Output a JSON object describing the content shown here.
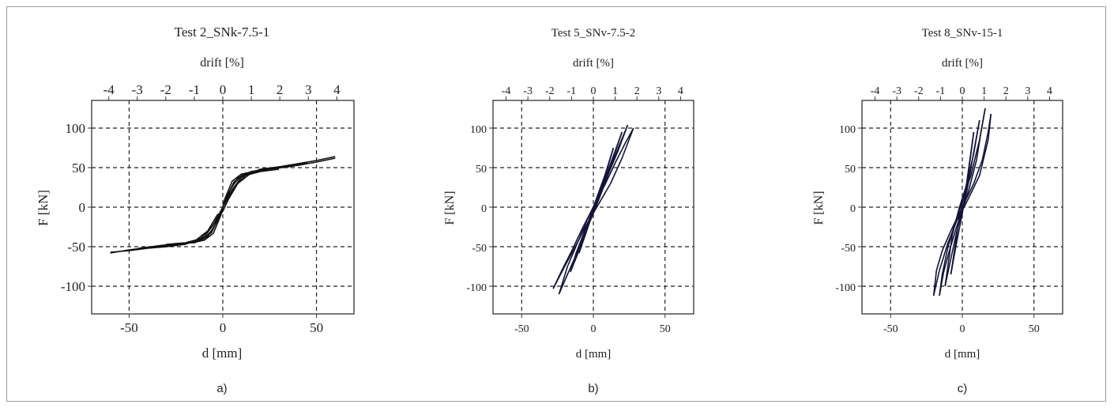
{
  "figure": {
    "panel_captions": [
      "a)",
      "b)",
      "c)"
    ]
  },
  "chart_data": [
    {
      "type": "line",
      "title": "Test 2_SNk-7.5-1",
      "xlabel": "d [mm]",
      "ylabel": "F [kN]",
      "x2label": "drift [%]",
      "xlim": [
        -70,
        70
      ],
      "ylim": [
        -135,
        135
      ],
      "x2lim": [
        -4.6,
        4.6
      ],
      "xticks": [
        -50,
        0,
        50
      ],
      "yticks": [
        -100,
        -50,
        0,
        50,
        100
      ],
      "x2ticks": [
        -4,
        -3,
        -2,
        -1,
        0,
        1,
        2,
        3,
        4
      ],
      "grid": true,
      "grid_style": "dashed",
      "series_color": "#111111",
      "series": [
        {
          "x": [
            -60,
            -50,
            -40,
            -30,
            -20,
            -10,
            -5,
            0,
            5,
            10,
            20,
            30,
            40,
            50,
            60
          ],
          "y": [
            -58,
            -54,
            -51,
            -48,
            -46,
            -40,
            -27,
            0,
            27,
            40,
            47,
            51,
            55,
            59,
            64
          ]
        },
        {
          "x": [
            60,
            50,
            40,
            30,
            20,
            10,
            5,
            0,
            -5,
            -10,
            -20,
            -30,
            -40,
            -50,
            -60
          ],
          "y": [
            62,
            57,
            53,
            51,
            48,
            38,
            22,
            0,
            -22,
            -38,
            -47,
            -50,
            -52,
            -55,
            -57
          ]
        },
        {
          "x": [
            -45,
            -35,
            -25,
            -15,
            -8,
            -3,
            0,
            3,
            8,
            15,
            25,
            35,
            45
          ],
          "y": [
            -52,
            -49,
            -46,
            -45,
            -37,
            -18,
            0,
            18,
            37,
            45,
            49,
            52,
            56
          ]
        },
        {
          "x": [
            45,
            35,
            25,
            15,
            8,
            3,
            0,
            -3,
            -8,
            -15,
            -25,
            -35,
            -45
          ],
          "y": [
            55,
            51,
            48,
            43,
            30,
            10,
            -5,
            -10,
            -30,
            -43,
            -48,
            -50,
            -53
          ]
        },
        {
          "x": [
            -30,
            -20,
            -12,
            -6,
            -2,
            0,
            2,
            6,
            12,
            20,
            30
          ],
          "y": [
            -47,
            -46,
            -43,
            -32,
            -12,
            0,
            12,
            32,
            43,
            46,
            50
          ]
        },
        {
          "x": [
            30,
            20,
            12,
            6,
            2,
            0,
            -2,
            -6,
            -12,
            -20,
            -30
          ],
          "y": [
            48,
            45,
            40,
            25,
            5,
            -5,
            -12,
            -25,
            -40,
            -45,
            -47
          ]
        },
        {
          "x": [
            -18,
            -10,
            -5,
            -1,
            0,
            1,
            5,
            10,
            18
          ],
          "y": [
            -44,
            -42,
            -33,
            -10,
            0,
            10,
            33,
            42,
            45
          ]
        }
      ]
    },
    {
      "type": "line",
      "title": "Test 5_SNv-7.5-2",
      "xlabel": "d [mm]",
      "ylabel": "F [kN]",
      "x2label": "drift [%]",
      "xlim": [
        -70,
        70
      ],
      "ylim": [
        -135,
        135
      ],
      "x2lim": [
        -4.6,
        4.6
      ],
      "xticks": [
        -50,
        0,
        50
      ],
      "yticks": [
        -100,
        -50,
        0,
        50,
        100
      ],
      "x2ticks": [
        -4,
        -3,
        -2,
        -1,
        0,
        1,
        2,
        3,
        4
      ],
      "grid": true,
      "grid_style": "dashed",
      "series_color": "#141436",
      "series": [
        {
          "x": [
            -28,
            -22,
            -15,
            -8,
            0,
            8,
            15,
            22,
            28
          ],
          "y": [
            -103,
            -80,
            -55,
            -28,
            0,
            28,
            55,
            80,
            100
          ]
        },
        {
          "x": [
            28,
            20,
            12,
            4,
            -4,
            -12,
            -20,
            -28
          ],
          "y": [
            100,
            62,
            30,
            5,
            -20,
            -48,
            -75,
            -103
          ]
        },
        {
          "x": [
            -24,
            -18,
            -10,
            -4,
            0,
            6,
            12,
            18,
            24
          ],
          "y": [
            -110,
            -85,
            -52,
            -25,
            -8,
            20,
            50,
            78,
            104
          ]
        },
        {
          "x": [
            24,
            17,
            10,
            3,
            -4,
            -11,
            -18,
            -24
          ],
          "y": [
            104,
            70,
            40,
            12,
            -15,
            -45,
            -75,
            -110
          ]
        },
        {
          "x": [
            -16,
            -10,
            -4,
            2,
            8,
            14,
            20
          ],
          "y": [
            -82,
            -55,
            -25,
            5,
            35,
            65,
            95
          ]
        },
        {
          "x": [
            20,
            13,
            6,
            0,
            -6,
            -12,
            -16
          ],
          "y": [
            95,
            58,
            25,
            -2,
            -30,
            -58,
            -82
          ]
        },
        {
          "x": [
            -10,
            -5,
            0,
            5,
            10,
            14
          ],
          "y": [
            -58,
            -32,
            -5,
            22,
            50,
            75
          ]
        },
        {
          "x": [
            14,
            8,
            2,
            -4,
            -10
          ],
          "y": [
            75,
            40,
            10,
            -22,
            -58
          ]
        }
      ]
    },
    {
      "type": "line",
      "title": "Test 8_SNv-15-1",
      "xlabel": "d [mm]",
      "ylabel": "F [kN]",
      "x2label": "drift [%]",
      "xlim": [
        -70,
        70
      ],
      "ylim": [
        -135,
        135
      ],
      "x2lim": [
        -4.6,
        4.6
      ],
      "xticks": [
        -50,
        0,
        50
      ],
      "yticks": [
        -100,
        -50,
        0,
        50,
        100
      ],
      "x2ticks": [
        -4,
        -3,
        -2,
        -1,
        0,
        1,
        2,
        3,
        4
      ],
      "grid": true,
      "grid_style": "dashed",
      "series_color": "#141436",
      "series": [
        {
          "x": [
            -20,
            -18,
            -14,
            -8,
            0,
            8,
            14,
            18,
            20
          ],
          "y": [
            -112,
            -80,
            -55,
            -30,
            0,
            30,
            60,
            95,
            118
          ]
        },
        {
          "x": [
            20,
            18,
            12,
            4,
            -4,
            -10,
            -16,
            -20
          ],
          "y": [
            118,
            85,
            40,
            10,
            -18,
            -45,
            -80,
            -112
          ]
        },
        {
          "x": [
            -16,
            -13,
            -9,
            -4,
            0,
            5,
            10,
            13,
            16
          ],
          "y": [
            -112,
            -82,
            -55,
            -25,
            -5,
            25,
            60,
            95,
            125
          ]
        },
        {
          "x": [
            16,
            12,
            6,
            0,
            -5,
            -10,
            -14,
            -16
          ],
          "y": [
            125,
            85,
            40,
            8,
            -20,
            -50,
            -85,
            -112
          ]
        },
        {
          "x": [
            -12,
            -8,
            -4,
            0,
            4,
            8,
            12
          ],
          "y": [
            -100,
            -65,
            -32,
            -5,
            28,
            70,
            110
          ]
        },
        {
          "x": [
            12,
            8,
            3,
            -2,
            -7,
            -12
          ],
          "y": [
            110,
            68,
            28,
            0,
            -35,
            -100
          ]
        },
        {
          "x": [
            -8,
            -4,
            0,
            4,
            8
          ],
          "y": [
            -85,
            -45,
            -8,
            40,
            95
          ]
        },
        {
          "x": [
            8,
            3,
            -2,
            -8
          ],
          "y": [
            95,
            30,
            -12,
            -85
          ]
        }
      ]
    }
  ]
}
